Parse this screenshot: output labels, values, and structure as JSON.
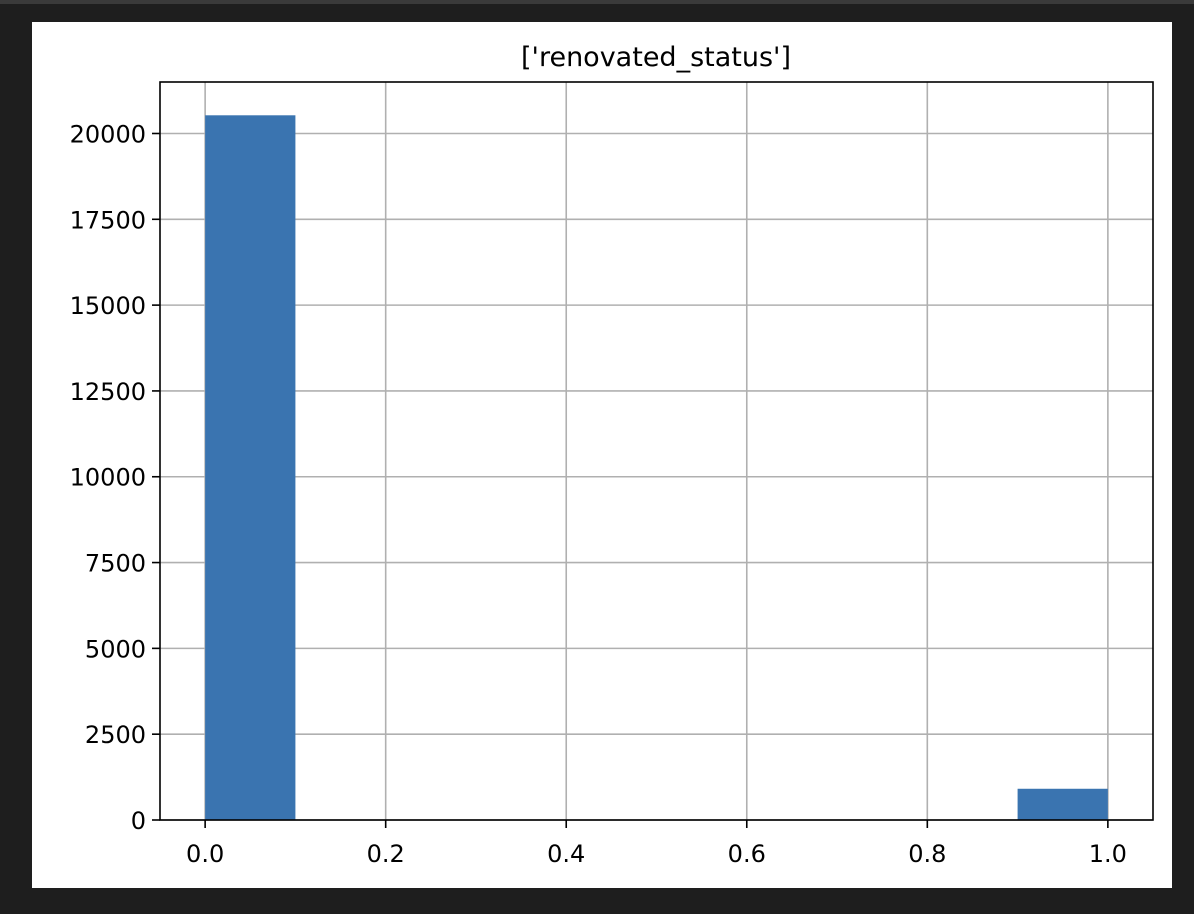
{
  "chart_data": {
    "type": "bar",
    "title": "['renovated_status']",
    "xlabel": "",
    "ylabel": "",
    "xlim": [
      -0.05,
      1.05
    ],
    "ylim": [
      0,
      21500
    ],
    "xticks": [
      0.0,
      0.2,
      0.4,
      0.6,
      0.8,
      1.0
    ],
    "xtick_labels": [
      "0.0",
      "0.2",
      "0.4",
      "0.6",
      "0.8",
      "1.0"
    ],
    "yticks": [
      0,
      2500,
      5000,
      7500,
      10000,
      12500,
      15000,
      17500,
      20000
    ],
    "ytick_labels": [
      "0",
      "2500",
      "5000",
      "7500",
      "10000",
      "12500",
      "15000",
      "17500",
      "20000"
    ],
    "bins": [
      {
        "x0": 0.0,
        "x1": 0.1,
        "count": 20530
      },
      {
        "x0": 0.1,
        "x1": 0.2,
        "count": 0
      },
      {
        "x0": 0.2,
        "x1": 0.3,
        "count": 0
      },
      {
        "x0": 0.3,
        "x1": 0.4,
        "count": 0
      },
      {
        "x0": 0.4,
        "x1": 0.5,
        "count": 0
      },
      {
        "x0": 0.5,
        "x1": 0.6,
        "count": 0
      },
      {
        "x0": 0.6,
        "x1": 0.7,
        "count": 0
      },
      {
        "x0": 0.7,
        "x1": 0.8,
        "count": 0
      },
      {
        "x0": 0.8,
        "x1": 0.9,
        "count": 0
      },
      {
        "x0": 0.9,
        "x1": 1.0,
        "count": 910
      }
    ],
    "grid": true,
    "bar_color": "#3a74b0",
    "grid_color": "#b0b0b0"
  }
}
